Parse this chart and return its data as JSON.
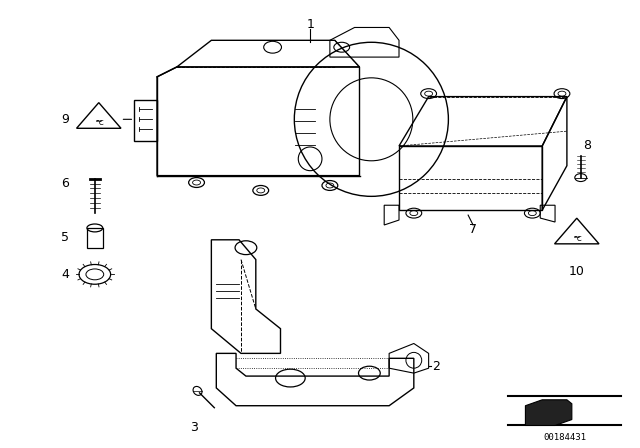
{
  "bg_color": "#ffffff",
  "line_color": "#000000",
  "image_id": "00184431",
  "figsize": [
    6.4,
    4.48
  ],
  "dpi": 100
}
